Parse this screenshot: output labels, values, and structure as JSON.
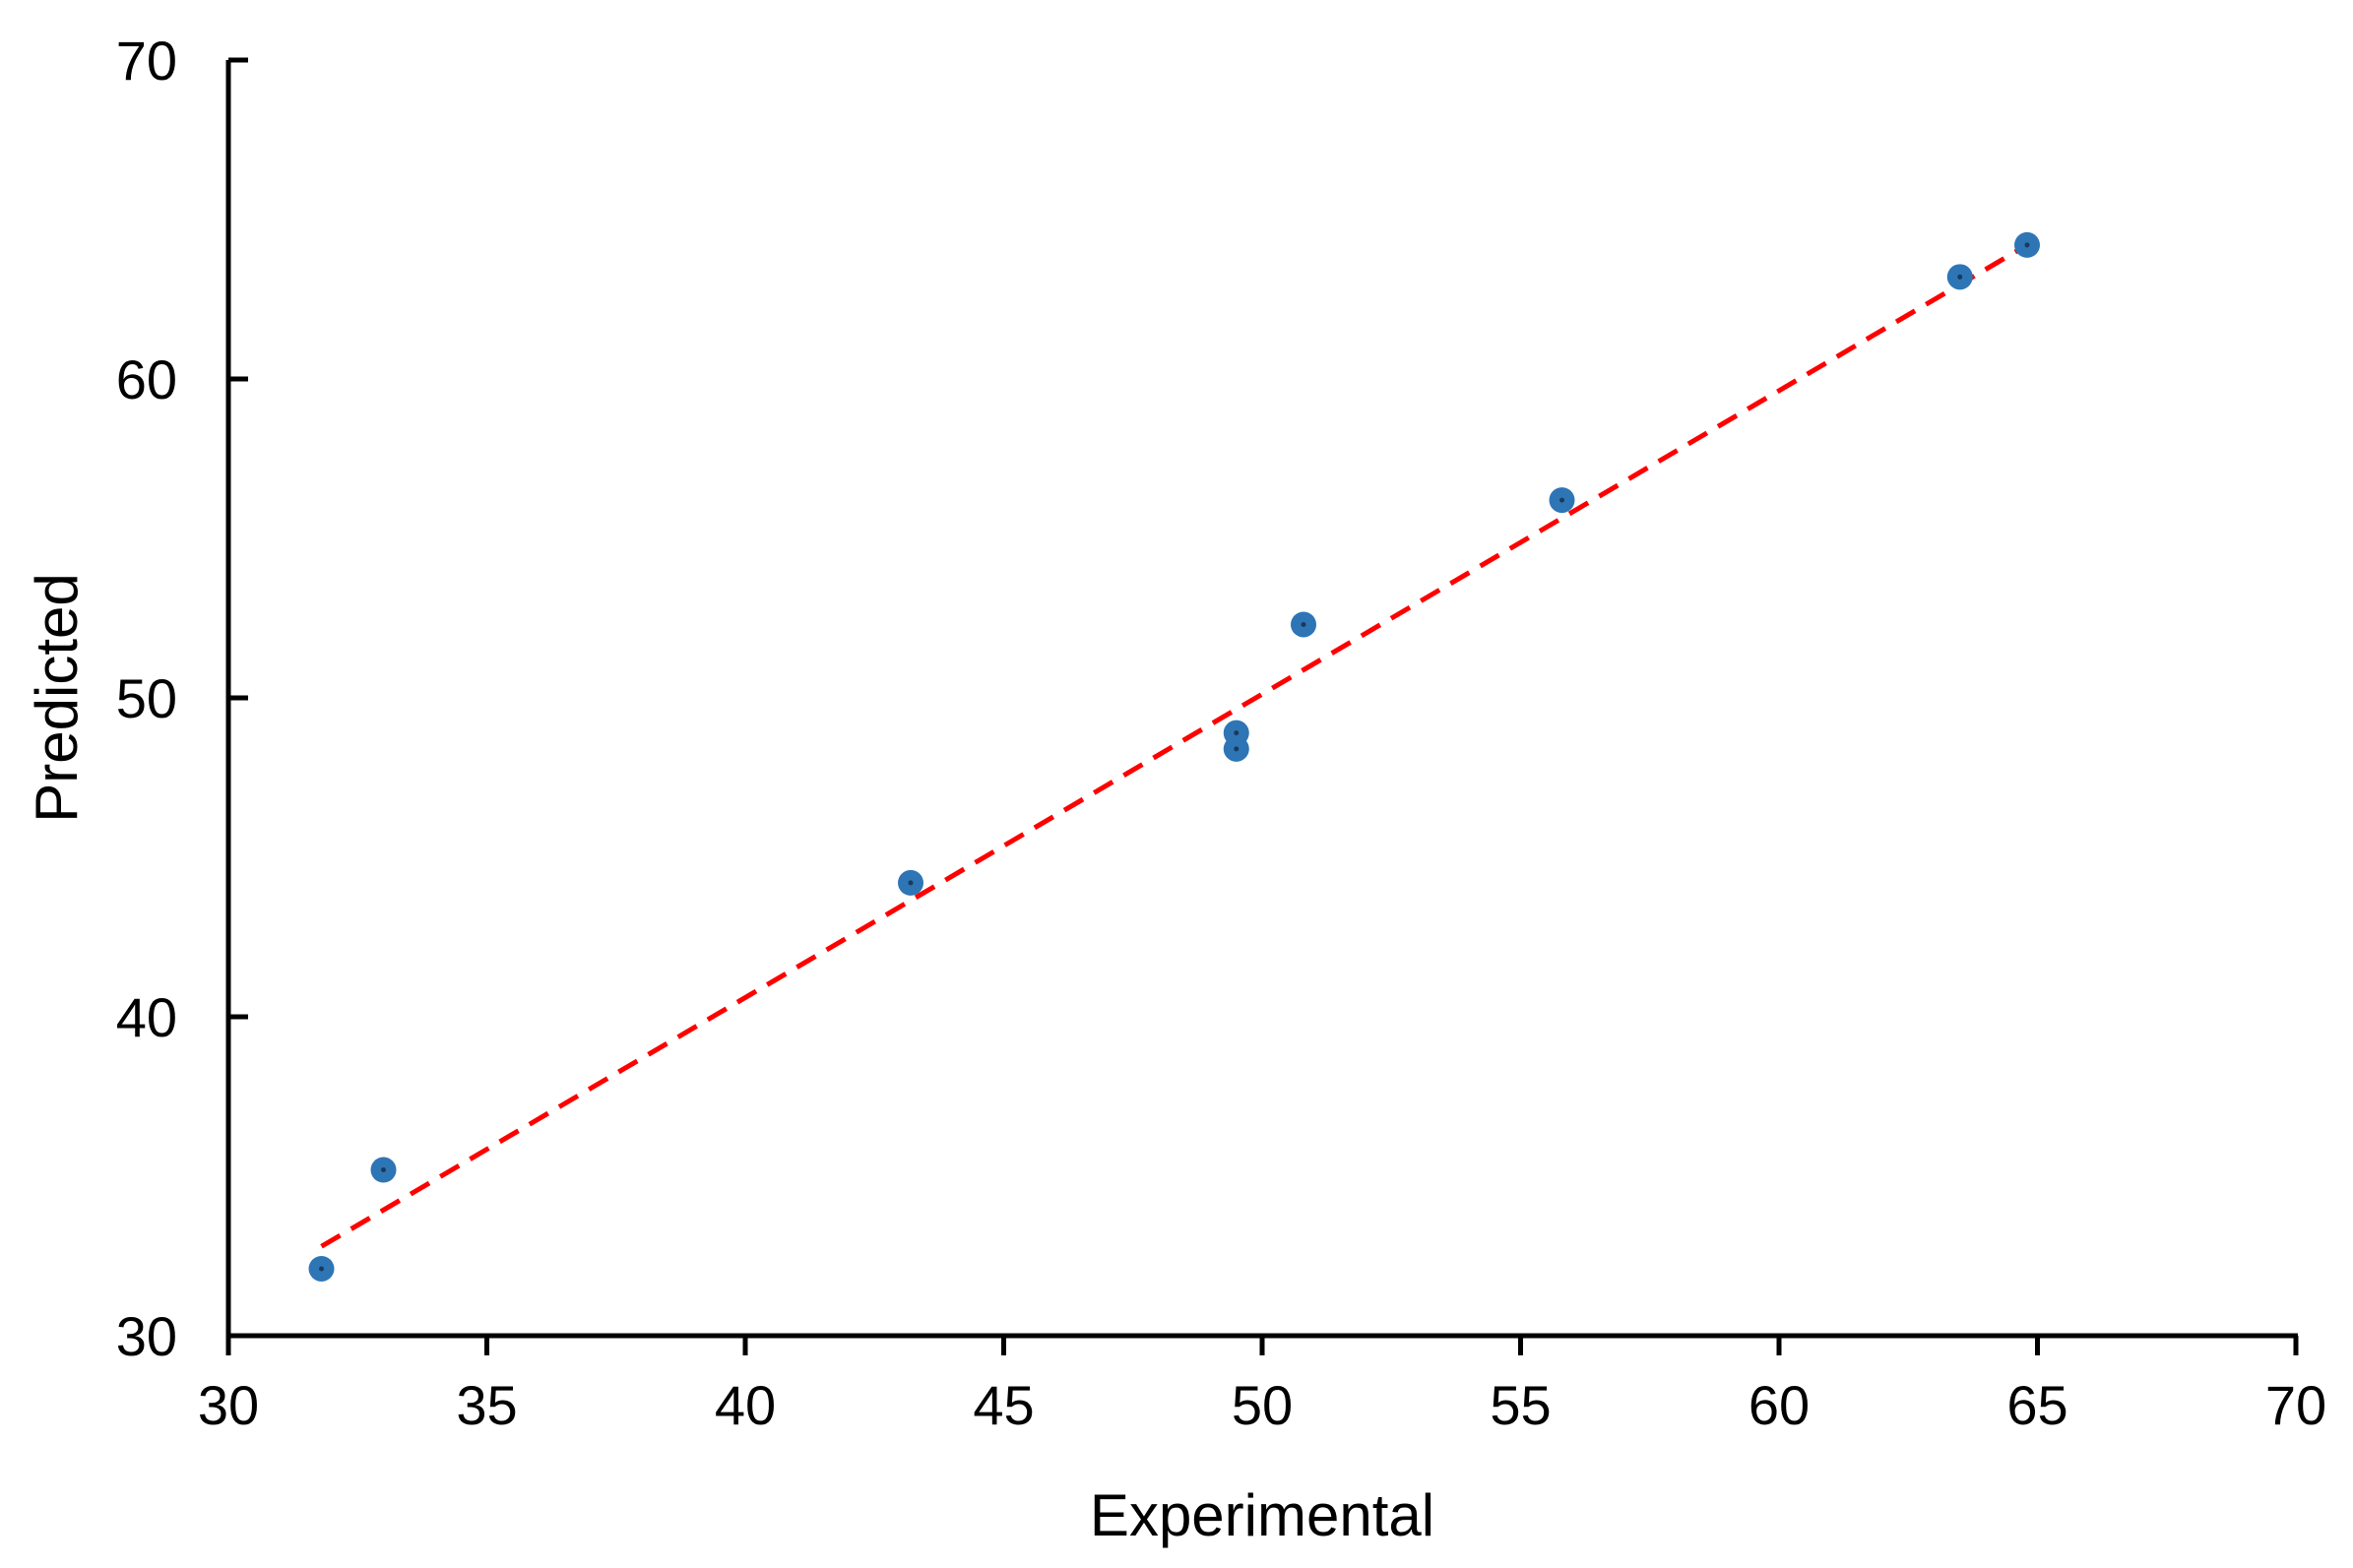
{
  "chart_data": {
    "type": "scatter",
    "title": "",
    "xlabel": "Experimental",
    "ylabel": "Predicted",
    "xlim": [
      30,
      70
    ],
    "ylim": [
      30,
      70
    ],
    "xticks": [
      30,
      35,
      40,
      45,
      50,
      55,
      60,
      65,
      70
    ],
    "yticks": [
      30,
      40,
      50,
      60,
      70
    ],
    "grid": false,
    "legend": "none",
    "series": [
      {
        "color": "#2e75b6",
        "points": [
          {
            "x": 31.8,
            "y": 32.1
          },
          {
            "x": 33.0,
            "y": 35.2
          },
          {
            "x": 43.2,
            "y": 44.2
          },
          {
            "x": 49.5,
            "y": 48.9
          },
          {
            "x": 49.5,
            "y": 48.4
          },
          {
            "x": 50.8,
            "y": 52.3
          },
          {
            "x": 55.8,
            "y": 56.2
          },
          {
            "x": 63.5,
            "y": 63.2
          },
          {
            "x": 64.8,
            "y": 64.2
          }
        ]
      }
    ],
    "fit_line": {
      "style": "dashed",
      "color": "#ff0000",
      "x": [
        31.8,
        64.8
      ],
      "y": [
        32.8,
        64.2
      ]
    }
  }
}
